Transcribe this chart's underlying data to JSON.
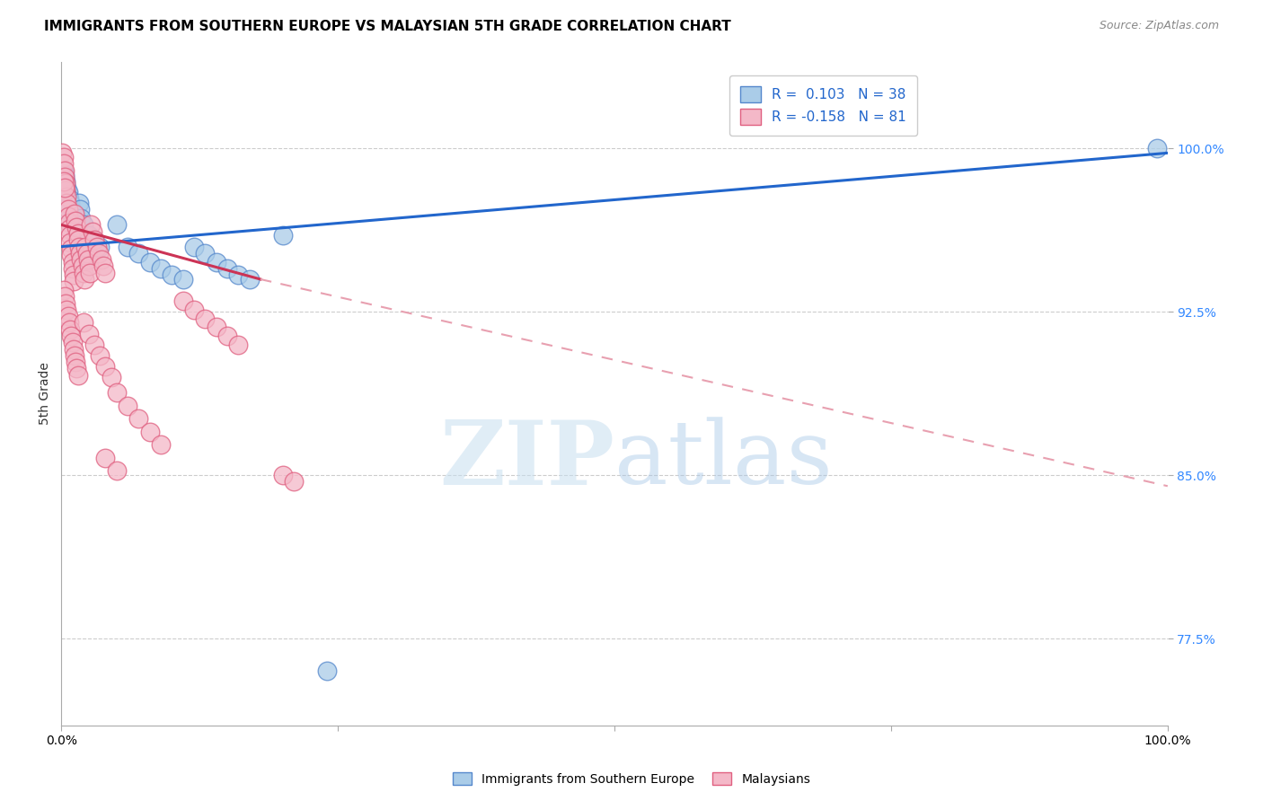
{
  "title": "IMMIGRANTS FROM SOUTHERN EUROPE VS MALAYSIAN 5TH GRADE CORRELATION CHART",
  "source": "Source: ZipAtlas.com",
  "ylabel": "5th Grade",
  "ytick_values": [
    0.775,
    0.85,
    0.925,
    1.0
  ],
  "xlim": [
    0.0,
    1.0
  ],
  "ylim": [
    0.735,
    1.04
  ],
  "legend_blue_label": "R =  0.103   N = 38",
  "legend_pink_label": "R = -0.158   N = 81",
  "blue_fill": "#aacce8",
  "blue_edge": "#5588cc",
  "pink_fill": "#f4b8c8",
  "pink_edge": "#e06080",
  "blue_line_color": "#2266cc",
  "pink_line_color": "#cc3355",
  "pink_dash_color": "#e8a0b0",
  "blue_dots": [
    [
      0.002,
      0.99
    ],
    [
      0.003,
      0.988
    ],
    [
      0.004,
      0.985
    ],
    [
      0.005,
      0.982
    ],
    [
      0.006,
      0.98
    ],
    [
      0.007,
      0.977
    ],
    [
      0.008,
      0.975
    ],
    [
      0.009,
      0.972
    ],
    [
      0.01,
      0.97
    ],
    [
      0.011,
      0.968
    ],
    [
      0.012,
      0.965
    ],
    [
      0.013,
      0.963
    ],
    [
      0.014,
      0.96
    ],
    [
      0.015,
      0.958
    ],
    [
      0.016,
      0.975
    ],
    [
      0.017,
      0.972
    ],
    [
      0.018,
      0.968
    ],
    [
      0.02,
      0.965
    ],
    [
      0.025,
      0.96
    ],
    [
      0.03,
      0.958
    ],
    [
      0.035,
      0.955
    ],
    [
      0.05,
      0.965
    ],
    [
      0.06,
      0.955
    ],
    [
      0.07,
      0.952
    ],
    [
      0.08,
      0.948
    ],
    [
      0.09,
      0.945
    ],
    [
      0.1,
      0.942
    ],
    [
      0.11,
      0.94
    ],
    [
      0.12,
      0.955
    ],
    [
      0.13,
      0.952
    ],
    [
      0.14,
      0.948
    ],
    [
      0.15,
      0.945
    ],
    [
      0.16,
      0.942
    ],
    [
      0.17,
      0.94
    ],
    [
      0.2,
      0.96
    ],
    [
      0.24,
      0.76
    ],
    [
      0.99,
      1.0
    ],
    [
      0.003,
      0.972
    ]
  ],
  "pink_dots": [
    [
      0.001,
      0.998
    ],
    [
      0.002,
      0.996
    ],
    [
      0.002,
      0.993
    ],
    [
      0.003,
      0.99
    ],
    [
      0.003,
      0.987
    ],
    [
      0.004,
      0.984
    ],
    [
      0.004,
      0.981
    ],
    [
      0.005,
      0.978
    ],
    [
      0.005,
      0.975
    ],
    [
      0.006,
      0.972
    ],
    [
      0.006,
      0.969
    ],
    [
      0.007,
      0.966
    ],
    [
      0.007,
      0.963
    ],
    [
      0.008,
      0.96
    ],
    [
      0.008,
      0.957
    ],
    [
      0.009,
      0.954
    ],
    [
      0.009,
      0.951
    ],
    [
      0.01,
      0.948
    ],
    [
      0.01,
      0.945
    ],
    [
      0.011,
      0.942
    ],
    [
      0.011,
      0.939
    ],
    [
      0.012,
      0.97
    ],
    [
      0.013,
      0.967
    ],
    [
      0.014,
      0.964
    ],
    [
      0.015,
      0.961
    ],
    [
      0.015,
      0.958
    ],
    [
      0.016,
      0.955
    ],
    [
      0.017,
      0.952
    ],
    [
      0.018,
      0.949
    ],
    [
      0.019,
      0.946
    ],
    [
      0.02,
      0.943
    ],
    [
      0.021,
      0.94
    ],
    [
      0.022,
      0.955
    ],
    [
      0.023,
      0.952
    ],
    [
      0.024,
      0.949
    ],
    [
      0.025,
      0.946
    ],
    [
      0.026,
      0.943
    ],
    [
      0.027,
      0.965
    ],
    [
      0.028,
      0.962
    ],
    [
      0.03,
      0.958
    ],
    [
      0.032,
      0.955
    ],
    [
      0.034,
      0.952
    ],
    [
      0.036,
      0.949
    ],
    [
      0.038,
      0.946
    ],
    [
      0.04,
      0.943
    ],
    [
      0.002,
      0.935
    ],
    [
      0.003,
      0.932
    ],
    [
      0.004,
      0.929
    ],
    [
      0.005,
      0.926
    ],
    [
      0.006,
      0.923
    ],
    [
      0.007,
      0.92
    ],
    [
      0.008,
      0.917
    ],
    [
      0.009,
      0.914
    ],
    [
      0.01,
      0.911
    ],
    [
      0.011,
      0.908
    ],
    [
      0.012,
      0.905
    ],
    [
      0.013,
      0.902
    ],
    [
      0.014,
      0.899
    ],
    [
      0.015,
      0.896
    ],
    [
      0.02,
      0.92
    ],
    [
      0.025,
      0.915
    ],
    [
      0.03,
      0.91
    ],
    [
      0.035,
      0.905
    ],
    [
      0.04,
      0.9
    ],
    [
      0.045,
      0.895
    ],
    [
      0.05,
      0.888
    ],
    [
      0.06,
      0.882
    ],
    [
      0.07,
      0.876
    ],
    [
      0.08,
      0.87
    ],
    [
      0.09,
      0.864
    ],
    [
      0.04,
      0.858
    ],
    [
      0.05,
      0.852
    ],
    [
      0.11,
      0.93
    ],
    [
      0.12,
      0.926
    ],
    [
      0.13,
      0.922
    ],
    [
      0.14,
      0.918
    ],
    [
      0.15,
      0.914
    ],
    [
      0.16,
      0.91
    ],
    [
      0.2,
      0.85
    ],
    [
      0.21,
      0.847
    ],
    [
      0.002,
      0.985
    ],
    [
      0.003,
      0.982
    ]
  ],
  "blue_line": {
    "x0": 0.0,
    "y0": 0.955,
    "x1": 1.0,
    "y1": 0.998
  },
  "pink_line_solid_x0": 0.0,
  "pink_line_solid_y0": 0.965,
  "pink_line_solid_x1": 0.18,
  "pink_line_solid_y1": 0.94,
  "pink_line_dashed_x0": 0.18,
  "pink_line_dashed_y0": 0.94,
  "pink_line_dashed_x1": 1.0,
  "pink_line_dashed_y1": 0.845,
  "watermark_zip": "ZIP",
  "watermark_atlas": "atlas",
  "background_color": "#ffffff",
  "grid_color": "#cccccc",
  "title_fontsize": 11,
  "source_fontsize": 9,
  "axis_label_fontsize": 10,
  "tick_fontsize": 10,
  "legend_fontsize": 11
}
